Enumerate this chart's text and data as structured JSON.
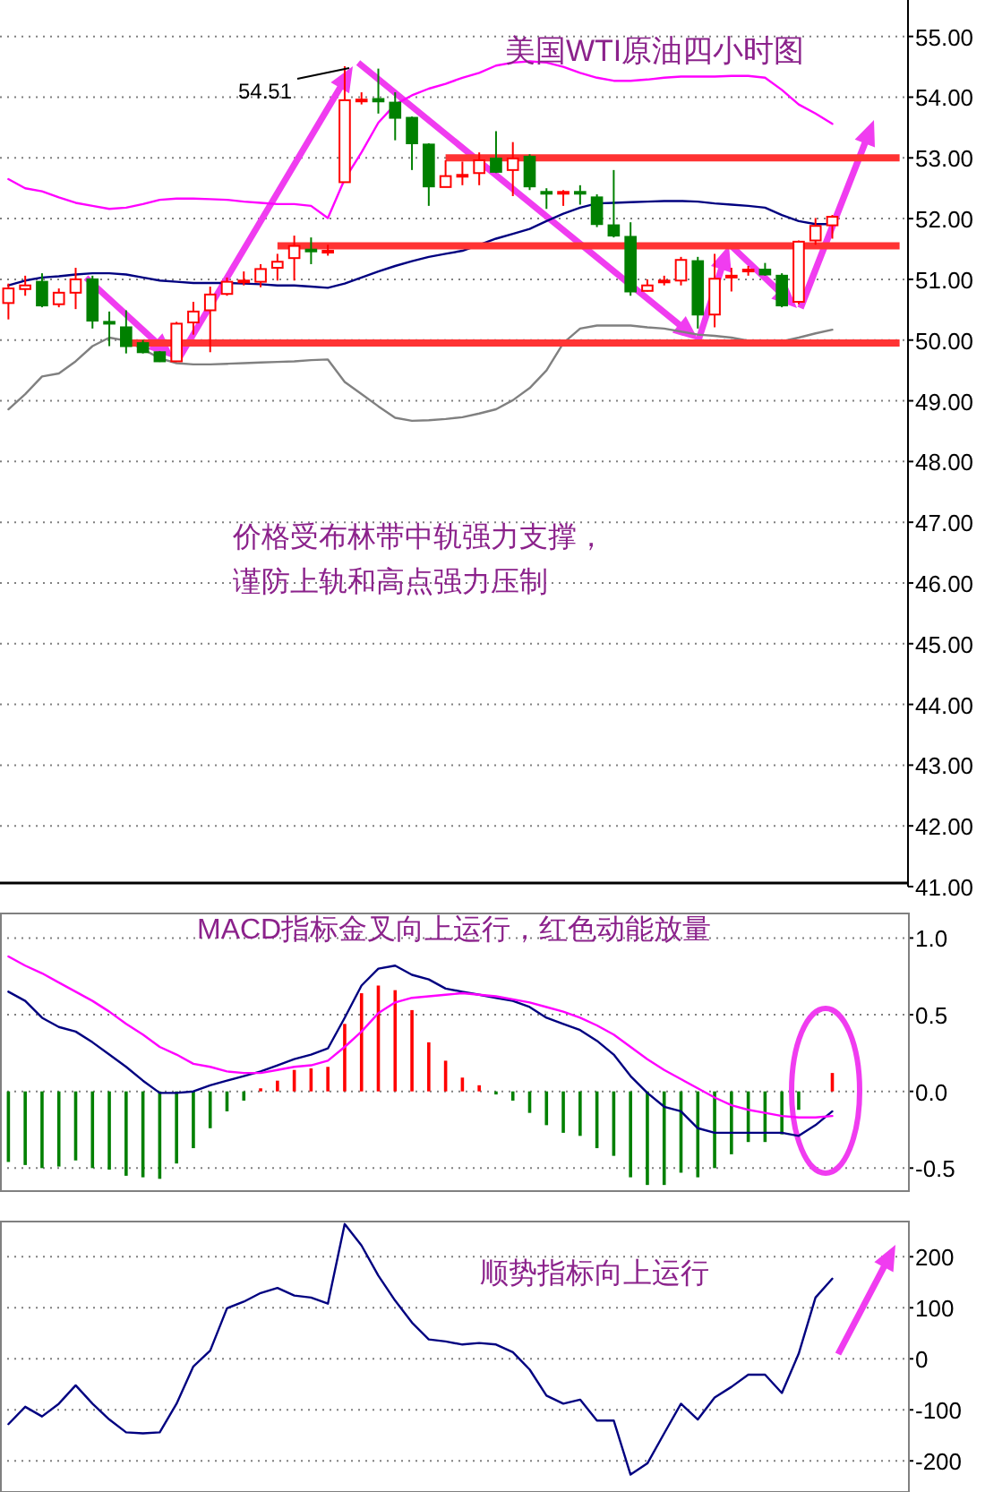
{
  "chart_data": [
    {
      "type": "candlestick",
      "title": "美国WTI原油四小时图",
      "categories": [
        null,
        null,
        null,
        null,
        null,
        null,
        null,
        null,
        null,
        null,
        null,
        null,
        null,
        null,
        null,
        null,
        null,
        null,
        null,
        null,
        null,
        null,
        null,
        null,
        null,
        null,
        null,
        null,
        null,
        null,
        null,
        null,
        null,
        null,
        null,
        null,
        null,
        null,
        null,
        null,
        null,
        null,
        null,
        null,
        null,
        null,
        null,
        null,
        null,
        null,
        null,
        null,
        null,
        null
      ],
      "ohlc": [
        [
          50.61,
          50.93,
          50.34,
          50.85
        ],
        [
          50.84,
          51.06,
          50.73,
          50.9
        ],
        [
          50.96,
          51.1,
          50.54,
          50.57
        ],
        [
          50.59,
          50.85,
          50.54,
          50.78
        ],
        [
          50.78,
          51.19,
          50.51,
          51.0
        ],
        [
          51.0,
          51.06,
          50.19,
          50.32
        ],
        [
          50.3,
          50.47,
          49.9,
          50.27
        ],
        [
          50.21,
          50.49,
          49.78,
          49.9
        ],
        [
          49.95,
          50.0,
          49.78,
          49.8
        ],
        [
          49.8,
          49.82,
          49.64,
          49.65
        ],
        [
          49.65,
          50.3,
          49.64,
          50.27
        ],
        [
          50.29,
          50.63,
          50.09,
          50.47
        ],
        [
          50.49,
          50.88,
          49.8,
          50.75
        ],
        [
          50.76,
          51.03,
          50.73,
          50.96
        ],
        [
          50.96,
          51.13,
          50.9,
          50.98
        ],
        [
          50.96,
          51.25,
          50.87,
          51.17
        ],
        [
          51.19,
          51.42,
          50.98,
          51.29
        ],
        [
          51.35,
          51.72,
          50.98,
          51.55
        ],
        [
          51.49,
          51.69,
          51.25,
          51.47
        ],
        [
          51.45,
          51.57,
          51.39,
          51.47
        ],
        [
          52.6,
          54.51,
          52.6,
          53.95
        ],
        [
          53.94,
          54.08,
          53.88,
          53.96
        ],
        [
          53.97,
          54.47,
          53.73,
          53.93
        ],
        [
          53.91,
          54.08,
          53.29,
          53.66
        ],
        [
          53.66,
          53.68,
          52.8,
          53.24
        ],
        [
          53.22,
          53.24,
          52.21,
          52.53
        ],
        [
          52.52,
          52.96,
          52.52,
          52.7
        ],
        [
          52.7,
          52.94,
          52.55,
          52.72
        ],
        [
          52.75,
          53.09,
          52.55,
          52.96
        ],
        [
          52.99,
          53.44,
          52.75,
          52.77
        ],
        [
          52.8,
          53.26,
          52.37,
          52.99
        ],
        [
          53.02,
          53.06,
          52.47,
          52.53
        ],
        [
          52.44,
          52.5,
          52.16,
          52.42
        ],
        [
          52.42,
          52.47,
          52.21,
          52.44
        ],
        [
          52.44,
          52.55,
          52.23,
          52.42
        ],
        [
          52.35,
          52.4,
          51.86,
          51.91
        ],
        [
          51.89,
          52.8,
          51.69,
          51.72
        ],
        [
          51.7,
          51.94,
          50.73,
          50.8
        ],
        [
          50.81,
          51.0,
          50.8,
          50.9
        ],
        [
          50.96,
          51.06,
          50.9,
          50.98
        ],
        [
          50.98,
          51.37,
          50.9,
          51.32
        ],
        [
          51.3,
          51.37,
          50.19,
          50.42
        ],
        [
          50.42,
          51.42,
          50.21,
          51.01
        ],
        [
          51.04,
          51.19,
          50.8,
          51.06
        ],
        [
          51.14,
          51.22,
          51.06,
          51.16
        ],
        [
          51.16,
          51.27,
          51.06,
          51.08
        ],
        [
          51.06,
          51.1,
          50.54,
          50.57
        ],
        [
          50.63,
          51.64,
          50.59,
          51.62
        ],
        [
          51.64,
          52.01,
          51.57,
          51.88
        ],
        [
          51.89,
          52.06,
          51.67,
          52.03
        ],
        null,
        null,
        null,
        null
      ],
      "series": [
        {
          "type": "line",
          "color": "#ff00ff",
          "values": [
            52.65,
            52.5,
            52.45,
            52.35,
            52.26,
            52.21,
            52.16,
            52.18,
            52.24,
            52.31,
            52.33,
            52.33,
            52.32,
            52.31,
            52.28,
            52.26,
            52.24,
            52.24,
            52.21,
            52.01,
            52.65,
            53.09,
            53.58,
            53.88,
            54.03,
            54.14,
            54.22,
            54.32,
            54.4,
            54.52,
            54.57,
            54.59,
            54.57,
            54.5,
            54.4,
            54.32,
            54.27,
            54.27,
            54.29,
            54.32,
            54.34,
            54.34,
            54.34,
            54.35,
            54.35,
            54.32,
            54.12,
            53.88,
            53.73,
            53.56,
            null,
            null,
            null,
            null
          ]
        },
        {
          "type": "line",
          "color": "#000080",
          "values": [
            50.9,
            50.98,
            51.03,
            51.05,
            51.08,
            51.1,
            51.1,
            51.08,
            51.03,
            50.98,
            50.96,
            50.94,
            50.94,
            50.94,
            50.93,
            50.92,
            50.9,
            50.9,
            50.88,
            50.86,
            50.93,
            51.03,
            51.13,
            51.22,
            51.3,
            51.37,
            51.42,
            51.47,
            51.57,
            51.67,
            51.75,
            51.83,
            51.96,
            52.08,
            52.18,
            52.25,
            52.26,
            52.27,
            52.28,
            52.29,
            52.29,
            52.28,
            52.25,
            52.23,
            52.21,
            52.18,
            52.06,
            51.96,
            51.91,
            51.91,
            null,
            null,
            null,
            null
          ]
        },
        {
          "type": "line",
          "color": "#808080",
          "values": [
            48.86,
            49.11,
            49.4,
            49.45,
            49.65,
            49.9,
            50.04,
            49.99,
            49.85,
            49.7,
            49.62,
            49.6,
            49.6,
            49.61,
            49.62,
            49.63,
            49.64,
            49.65,
            49.67,
            49.68,
            49.31,
            49.11,
            48.91,
            48.72,
            48.67,
            48.68,
            48.7,
            48.73,
            48.79,
            48.86,
            49.01,
            49.21,
            49.5,
            49.95,
            50.19,
            50.24,
            50.24,
            50.24,
            50.21,
            50.19,
            50.14,
            50.09,
            50.07,
            50.04,
            49.99,
            49.95,
            49.98,
            50.04,
            50.11,
            50.17,
            null,
            null,
            null,
            null
          ]
        },
        {
          "type": "line",
          "color": "#ff3333",
          "values": [
            null,
            null,
            null,
            null,
            null,
            null,
            null,
            null,
            null,
            null,
            null,
            null,
            null,
            null,
            null,
            null,
            null,
            null,
            null,
            null,
            null,
            null,
            null,
            null,
            null,
            null,
            53.0,
            53.0,
            53.0,
            53.0,
            53.0,
            53.0,
            53.0,
            53.0,
            53.0,
            53.0,
            53.0,
            53.0,
            53.0,
            53.0,
            53.0,
            53.0,
            53.0,
            53.0,
            53.0,
            53.0,
            53.0,
            53.0,
            53.0,
            53.0,
            53.0,
            53.0,
            53.0,
            53.0
          ]
        },
        {
          "type": "line",
          "color": "#ff3333",
          "values": [
            null,
            null,
            null,
            null,
            null,
            null,
            null,
            null,
            null,
            null,
            null,
            null,
            null,
            null,
            null,
            null,
            51.55,
            51.55,
            51.55,
            51.55,
            51.55,
            51.55,
            51.55,
            51.55,
            51.55,
            51.55,
            51.55,
            51.55,
            51.55,
            51.55,
            51.55,
            51.55,
            51.55,
            51.55,
            51.55,
            51.55,
            51.55,
            51.55,
            51.55,
            51.55,
            51.55,
            51.55,
            51.55,
            51.55,
            51.55,
            51.55,
            51.55,
            51.55,
            51.55,
            51.55,
            51.55,
            51.55,
            51.55,
            51.55
          ]
        },
        {
          "type": "line",
          "color": "#ff3333",
          "values": [
            null,
            null,
            null,
            null,
            null,
            null,
            null,
            49.95,
            49.95,
            49.95,
            49.95,
            49.95,
            49.95,
            49.95,
            49.95,
            49.95,
            49.95,
            49.95,
            49.95,
            49.95,
            49.95,
            49.95,
            49.95,
            49.95,
            49.95,
            49.95,
            49.95,
            49.95,
            49.95,
            49.95,
            49.95,
            49.95,
            49.95,
            49.95,
            49.95,
            49.95,
            49.95,
            49.95,
            49.95,
            49.95,
            49.95,
            49.95,
            49.95,
            49.95,
            49.95,
            49.95,
            49.95,
            49.95,
            49.95,
            49.95,
            49.95,
            49.95,
            49.95,
            49.95
          ]
        }
      ],
      "ylim": [
        41,
        55.6
      ],
      "yticks": [
        {
          "value": 41,
          "label": "41.00"
        },
        {
          "value": 42,
          "label": "42.00"
        },
        {
          "value": 43,
          "label": "43.00"
        },
        {
          "value": 44,
          "label": "44.00"
        },
        {
          "value": 45,
          "label": "45.00"
        },
        {
          "value": 46,
          "label": "46.00"
        },
        {
          "value": 47,
          "label": "47.00"
        },
        {
          "value": 48,
          "label": "48.00"
        },
        {
          "value": 49,
          "label": "49.00"
        },
        {
          "value": 50,
          "label": "50.00"
        },
        {
          "value": 51,
          "label": "51.00"
        },
        {
          "value": 52,
          "label": "52.00"
        },
        {
          "value": 53,
          "label": "53.00"
        },
        {
          "value": 54,
          "label": "54.00"
        },
        {
          "value": 55,
          "label": "55.00"
        }
      ],
      "grid": "y",
      "annotations": [
        "54.51",
        "价格受布林带中轨强力支撑，",
        "谨防上轨和高点强力压制"
      ]
    },
    {
      "type": "bar",
      "categories": [
        null,
        null,
        null,
        null,
        null,
        null,
        null,
        null,
        null,
        null,
        null,
        null,
        null,
        null,
        null,
        null,
        null,
        null,
        null,
        null,
        null,
        null,
        null,
        null,
        null,
        null,
        null,
        null,
        null,
        null,
        null,
        null,
        null,
        null,
        null,
        null,
        null,
        null,
        null,
        null,
        null,
        null,
        null,
        null,
        null,
        null,
        null,
        null,
        null,
        null,
        null,
        null,
        null,
        null
      ],
      "series": [
        {
          "type": "bar",
          "values": [
            -0.46,
            -0.48,
            -0.5,
            -0.49,
            -0.45,
            -0.5,
            -0.51,
            -0.55,
            -0.56,
            -0.57,
            -0.47,
            -0.37,
            -0.24,
            -0.13,
            -0.06,
            0.02,
            0.07,
            0.14,
            0.15,
            0.16,
            0.44,
            0.64,
            0.69,
            0.66,
            0.53,
            0.32,
            0.2,
            0.09,
            0.04,
            -0.02,
            -0.06,
            -0.14,
            -0.22,
            -0.27,
            -0.29,
            -0.37,
            -0.42,
            -0.56,
            -0.61,
            -0.61,
            -0.53,
            -0.56,
            -0.5,
            -0.41,
            -0.33,
            -0.33,
            -0.28,
            -0.12,
            0,
            0.12,
            null,
            null,
            null,
            null
          ],
          "colors": [
            "#008000",
            "#008000",
            "#008000",
            "#008000",
            "#008000",
            "#008000",
            "#008000",
            "#008000",
            "#008000",
            "#008000",
            "#008000",
            "#008000",
            "#008000",
            "#008000",
            "#008000",
            "#ff0000",
            "#ff0000",
            "#ff0000",
            "#ff0000",
            "#ff0000",
            "#ff0000",
            "#ff0000",
            "#ff0000",
            "#ff0000",
            "#ff0000",
            "#ff0000",
            "#ff0000",
            "#ff0000",
            "#ff0000",
            "#008000",
            "#008000",
            "#008000",
            "#008000",
            "#008000",
            "#008000",
            "#008000",
            "#008000",
            "#008000",
            "#008000",
            "#008000",
            "#008000",
            "#008000",
            "#008000",
            "#008000",
            "#008000",
            "#008000",
            "#008000",
            "#008000",
            "#008000",
            "#ff0000",
            null,
            null,
            null,
            null
          ]
        },
        {
          "type": "line",
          "color": "#000080",
          "values": [
            0.65,
            0.59,
            0.48,
            0.42,
            0.39,
            0.32,
            0.24,
            0.16,
            0.07,
            -0.01,
            -0.01,
            0.0,
            0.04,
            0.07,
            0.1,
            0.13,
            0.17,
            0.21,
            0.24,
            0.28,
            0.48,
            0.69,
            0.8,
            0.82,
            0.76,
            0.73,
            0.67,
            0.65,
            0.63,
            0.61,
            0.59,
            0.55,
            0.48,
            0.44,
            0.4,
            0.33,
            0.24,
            0.1,
            -0.01,
            -0.1,
            -0.13,
            -0.24,
            -0.27,
            -0.27,
            -0.27,
            -0.27,
            -0.27,
            -0.29,
            -0.22,
            -0.13,
            null,
            null,
            null,
            null
          ]
        },
        {
          "type": "line",
          "color": "#ff00ff",
          "values": [
            0.88,
            0.82,
            0.77,
            0.71,
            0.65,
            0.59,
            0.52,
            0.44,
            0.37,
            0.29,
            0.24,
            0.18,
            0.16,
            0.13,
            0.12,
            0.12,
            0.14,
            0.16,
            0.17,
            0.2,
            0.29,
            0.39,
            0.51,
            0.58,
            0.61,
            0.62,
            0.63,
            0.64,
            0.63,
            0.62,
            0.6,
            0.58,
            0.55,
            0.52,
            0.48,
            0.43,
            0.37,
            0.29,
            0.21,
            0.14,
            0.08,
            0.02,
            -0.04,
            -0.09,
            -0.12,
            -0.14,
            -0.16,
            -0.17,
            -0.17,
            -0.16,
            null,
            null,
            null,
            null
          ]
        }
      ],
      "ylim": [
        -0.65,
        1.16
      ],
      "yticks": [
        {
          "value": -0.5,
          "label": "-0.5"
        },
        {
          "value": 0,
          "label": "0.0"
        },
        {
          "value": 0.5,
          "label": "0.5"
        },
        {
          "value": 1,
          "label": "1.0"
        }
      ],
      "grid": "y",
      "annotations": [
        "MACD指标金叉向上运行，红色动能放量"
      ]
    },
    {
      "type": "line",
      "categories": [
        null,
        null,
        null,
        null,
        null,
        null,
        null,
        null,
        null,
        null,
        null,
        null,
        null,
        null,
        null,
        null,
        null,
        null,
        null,
        null,
        null,
        null,
        null,
        null,
        null,
        null,
        null,
        null,
        null,
        null,
        null,
        null,
        null,
        null,
        null,
        null,
        null,
        null,
        null,
        null,
        null,
        null,
        null,
        null,
        null,
        null,
        null,
        null,
        null,
        null,
        null,
        null,
        null,
        null
      ],
      "series": [
        {
          "color": "#000080",
          "values": [
            -128,
            -94,
            -113,
            -88,
            -52,
            -88,
            -119,
            -144,
            -146,
            -144,
            -88,
            -15,
            16,
            99,
            112,
            129,
            139,
            124,
            120,
            108,
            264,
            222,
            163,
            114,
            71,
            38,
            34,
            28,
            31,
            28,
            13,
            -21,
            -72,
            -88,
            -80,
            -121,
            -121,
            -227,
            -205,
            -146,
            -88,
            -119,
            -76,
            -55,
            -31,
            -31,
            -67,
            10,
            120,
            157,
            null,
            null,
            null,
            null
          ]
        }
      ],
      "ylim": [
        -261,
        269
      ],
      "yticks": [
        -200,
        -100,
        0,
        100,
        200
      ],
      "grid": "y",
      "annotations": [
        "顺势指标向上运行"
      ]
    }
  ]
}
